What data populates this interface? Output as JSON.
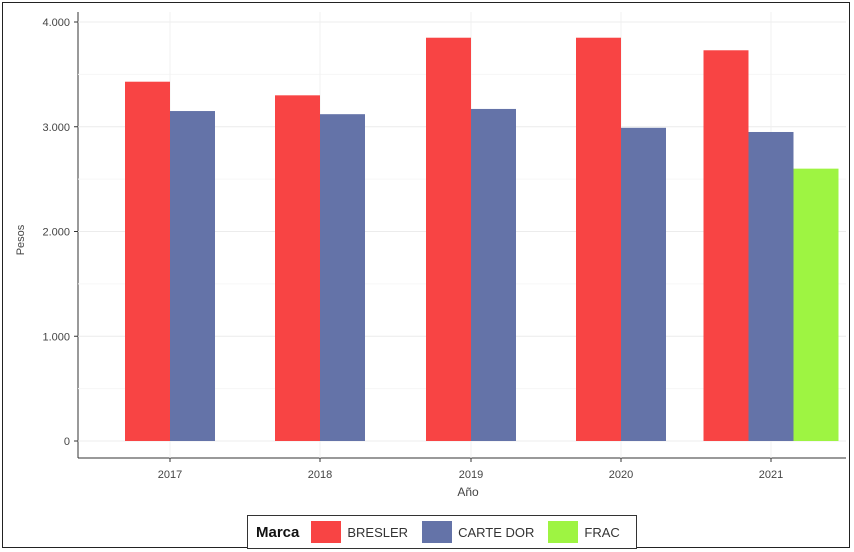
{
  "chart_data": {
    "type": "bar",
    "title": "",
    "xlabel": "Año",
    "ylabel": "Pesos",
    "categories": [
      "2017",
      "2018",
      "2019",
      "2020",
      "2021"
    ],
    "series": [
      {
        "name": "BRESLER",
        "color": "#f84444",
        "values": [
          3430,
          3300,
          3850,
          3850,
          3730
        ]
      },
      {
        "name": "CARTE DOR",
        "color": "#6473a8",
        "values": [
          3150,
          3120,
          3170,
          2990,
          2950
        ]
      },
      {
        "name": "FRAC",
        "color": "#9ef442",
        "values": [
          null,
          null,
          null,
          null,
          2600
        ]
      }
    ],
    "yticks": [
      0,
      1000,
      2000,
      3000,
      4000
    ],
    "ytick_labels": [
      "0",
      "1.000",
      "2.000",
      "3.000",
      "4.000"
    ],
    "ylim": [
      0,
      4000
    ],
    "grid": true,
    "legend_title": "Marca",
    "legend_position": "bottom"
  }
}
